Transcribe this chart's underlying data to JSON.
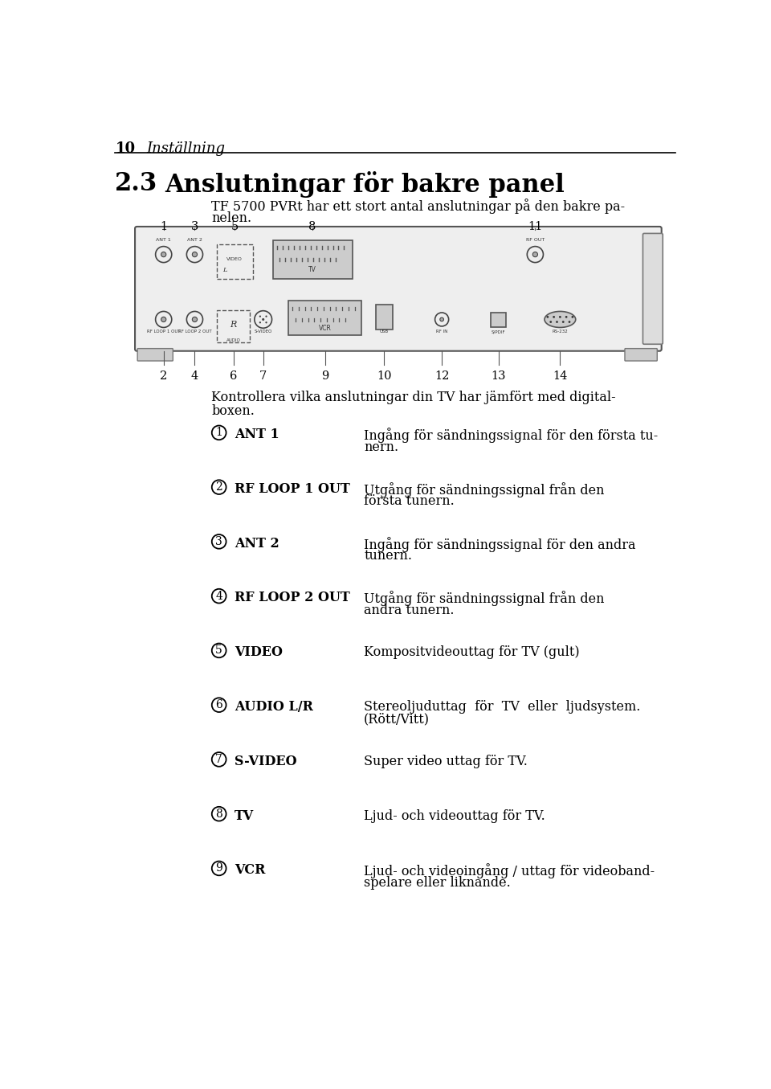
{
  "page_num": "10",
  "page_header": "Inställning",
  "section_num": "2.3",
  "section_title": "Anslutningar för bakre panel",
  "intro_line1": "TF 5700 PVRt har ett stort antal anslutningar på den bakre pa-",
  "intro_line2": "nelen.",
  "body_line1": "Kontrollera vilka anslutningar din TV har jämfört med digital-",
  "body_line2": "boxen.",
  "items": [
    {
      "num": "1",
      "label": "ANT 1",
      "desc_line1": "Ingång för sändningssignal för den första tu-",
      "desc_line2": "nern."
    },
    {
      "num": "2",
      "label": "RF LOOP 1 OUT",
      "desc_line1": "Utgång för sändningssignal från den",
      "desc_line2": "första tunern."
    },
    {
      "num": "3",
      "label": "ANT 2",
      "desc_line1": "Ingång för sändningssignal för den andra",
      "desc_line2": "tunern."
    },
    {
      "num": "4",
      "label": "RF LOOP 2 OUT",
      "desc_line1": "Utgång för sändningssignal från den",
      "desc_line2": "andra tunern."
    },
    {
      "num": "5",
      "label": "VIDEO",
      "desc_line1": "Kompositvideouttag för TV (gult)",
      "desc_line2": ""
    },
    {
      "num": "6",
      "label": "AUDIO L/R",
      "desc_line1": "Stereoljuduttag  för  TV  eller  ljudsystem.",
      "desc_line2": "(Rött/Vitt)"
    },
    {
      "num": "7",
      "label": "S-VIDEO",
      "desc_line1": "Super video uttag för TV.",
      "desc_line2": ""
    },
    {
      "num": "8",
      "label": "TV",
      "desc_line1": "Ljud- och videouttag för TV.",
      "desc_line2": ""
    },
    {
      "num": "9",
      "label": "VCR",
      "desc_line1": "Ljud- och videoingång / uttag för videoband-",
      "desc_line2": "spelare eller liknande."
    }
  ],
  "bg_color": "#ffffff",
  "text_color": "#000000",
  "header_line_color": "#000000"
}
